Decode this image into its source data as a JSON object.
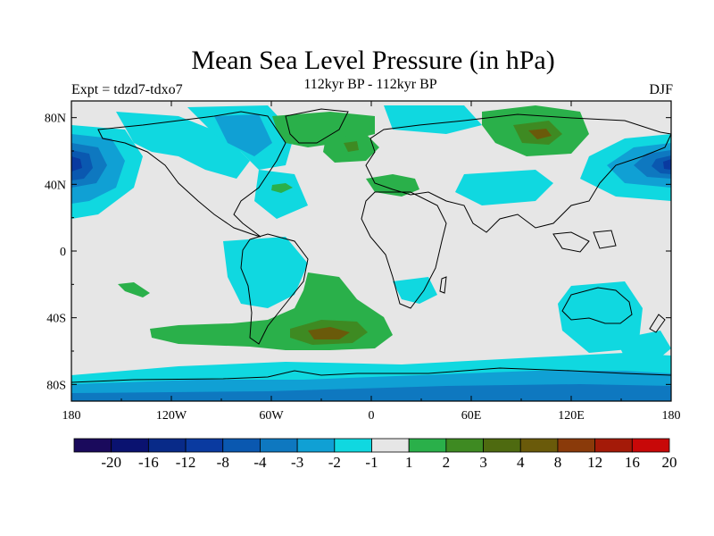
{
  "title": "Mean Sea Level Pressure (in hPa)",
  "subtitle": "112kyr BP - 112kyr BP",
  "experiment": "Expt = tdzd7-tdxo7",
  "season": "DJF",
  "axes": {
    "x_ticks": [
      "180",
      "120W",
      "60W",
      "0",
      "60E",
      "120E",
      "180"
    ],
    "y_ticks": [
      "80N",
      "40N",
      "0",
      "40S",
      "80S"
    ],
    "lon_range": [
      -180,
      180
    ],
    "lat_range": [
      -90,
      90
    ]
  },
  "colorbar": {
    "labels": [
      "-20",
      "-16",
      "-12",
      "-8",
      "-4",
      "-3",
      "-2",
      "-1",
      "1",
      "2",
      "3",
      "4",
      "8",
      "12",
      "16",
      "20"
    ],
    "colors": [
      "#1a0a5c",
      "#0a1270",
      "#082a88",
      "#0a3aa0",
      "#0a58b0",
      "#0e78c0",
      "#10a0d4",
      "#10d8e0",
      "#e6e6e6",
      "#2ab04a",
      "#3e8a22",
      "#4e6a10",
      "#6a5a0a",
      "#8a3a0a",
      "#a41a08",
      "#c80808"
    ]
  },
  "colors": {
    "land_outline": "#000000",
    "background": "#e6e6e6",
    "cyan": "#10d8e0",
    "light_blue": "#10a0d4",
    "mid_blue": "#0e78c0",
    "blue": "#0a58b0",
    "dark_blue": "#0a3aa0",
    "green": "#2ab04a",
    "olive": "#3e8a22",
    "brown": "#6a5a0a"
  }
}
